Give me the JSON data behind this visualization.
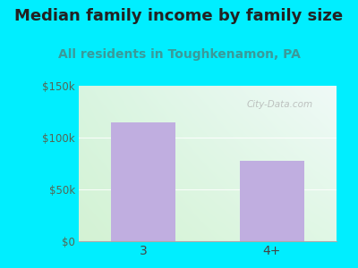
{
  "title": "Median family income by family size",
  "subtitle": "All residents in Toughkenamon, PA",
  "categories": [
    "3",
    "4+"
  ],
  "values": [
    115000,
    78000
  ],
  "bar_color": "#c0aee0",
  "outer_bg": "#00eeff",
  "ylim": [
    0,
    150000
  ],
  "yticks": [
    0,
    50000,
    100000,
    150000
  ],
  "ytick_labels": [
    "$0",
    "$50k",
    "$100k",
    "$150k"
  ],
  "title_fontsize": 13,
  "subtitle_fontsize": 10,
  "title_color": "#222222",
  "subtitle_color": "#3a9a9a",
  "watermark": "City-Data.com",
  "gradient_top_left": "#d8f0e8",
  "gradient_top_right": "#f0f8f8",
  "gradient_bottom_left": "#d8f0d0",
  "gradient_bottom_right": "#e8f8f0"
}
